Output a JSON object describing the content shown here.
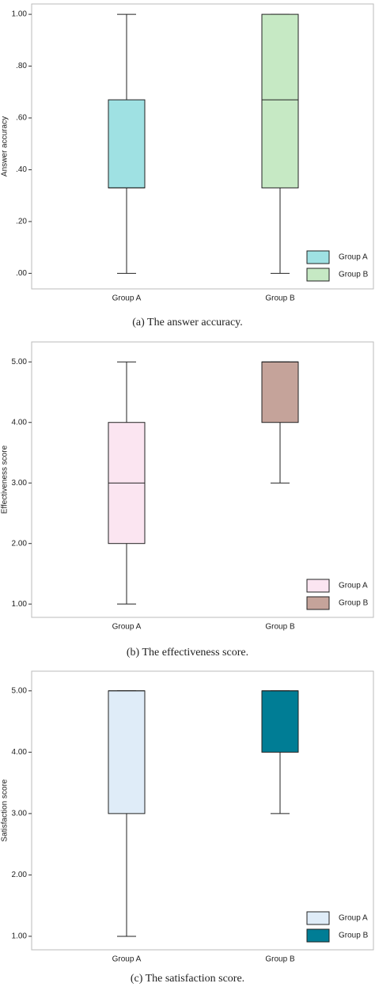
{
  "chart_data": [
    {
      "type": "box",
      "caption": "(a)  The answer accuracy.",
      "y_label": "Answer accuracy",
      "categories": [
        "Group A",
        "Group B"
      ],
      "series": [
        {
          "name": "Group A",
          "color": "#9fe1e3",
          "min": 0,
          "q1": 0.33,
          "median": 0.33,
          "q3": 0.67,
          "max": 1
        },
        {
          "name": "Group B",
          "color": "#c6e9c4",
          "min": 0,
          "q1": 0.33,
          "median": 0.67,
          "q3": 1,
          "max": 1
        }
      ],
      "ylim": [
        -0.06,
        1.04
      ],
      "yticks": [
        {
          "value": 0,
          "label": ".00"
        },
        {
          "value": 0.2,
          "label": ".20"
        },
        {
          "value": 0.4,
          "label": ".40"
        },
        {
          "value": 0.6,
          "label": ".60"
        },
        {
          "value": 0.8,
          "label": ".80"
        },
        {
          "value": 1,
          "label": "1.00"
        }
      ],
      "legend": "lower right"
    },
    {
      "type": "box",
      "caption": "(b)  The effectiveness score.",
      "y_label": "Effectiveness score",
      "categories": [
        "Group A",
        "Group B"
      ],
      "series": [
        {
          "name": "Group A",
          "color": "#fbe5f1",
          "min": 1,
          "q1": 2,
          "median": 3,
          "q3": 4,
          "max": 5
        },
        {
          "name": "Group B",
          "color": "#c5a39a",
          "min": 3,
          "q1": 4,
          "median": 5,
          "q3": 5,
          "max": 5
        }
      ],
      "ylim": [
        0.78,
        5.33
      ],
      "yticks": [
        {
          "value": 1,
          "label": "1.00"
        },
        {
          "value": 2,
          "label": "2.00"
        },
        {
          "value": 3,
          "label": "3.00"
        },
        {
          "value": 4,
          "label": "4.00"
        },
        {
          "value": 5,
          "label": "5.00"
        }
      ],
      "legend": "lower right"
    },
    {
      "type": "box",
      "caption": "(c)  The satisfaction score.",
      "y_label": "Satisfaction score",
      "categories": [
        "Group A",
        "Group B"
      ],
      "series": [
        {
          "name": "Group A",
          "color": "#dfecf8",
          "min": 1,
          "q1": 3,
          "median": 5,
          "q3": 5,
          "max": 5
        },
        {
          "name": "Group B",
          "color": "#007d95",
          "min": 3,
          "q1": 4,
          "median": 5,
          "q3": 5,
          "max": 5
        }
      ],
      "ylim": [
        0.78,
        5.32
      ],
      "yticks": [
        {
          "value": 1,
          "label": "1.00"
        },
        {
          "value": 2,
          "label": "2.00"
        },
        {
          "value": 3,
          "label": "3.00"
        },
        {
          "value": 4,
          "label": "4.00"
        },
        {
          "value": 5,
          "label": "5.00"
        }
      ],
      "legend": "lower right"
    }
  ]
}
